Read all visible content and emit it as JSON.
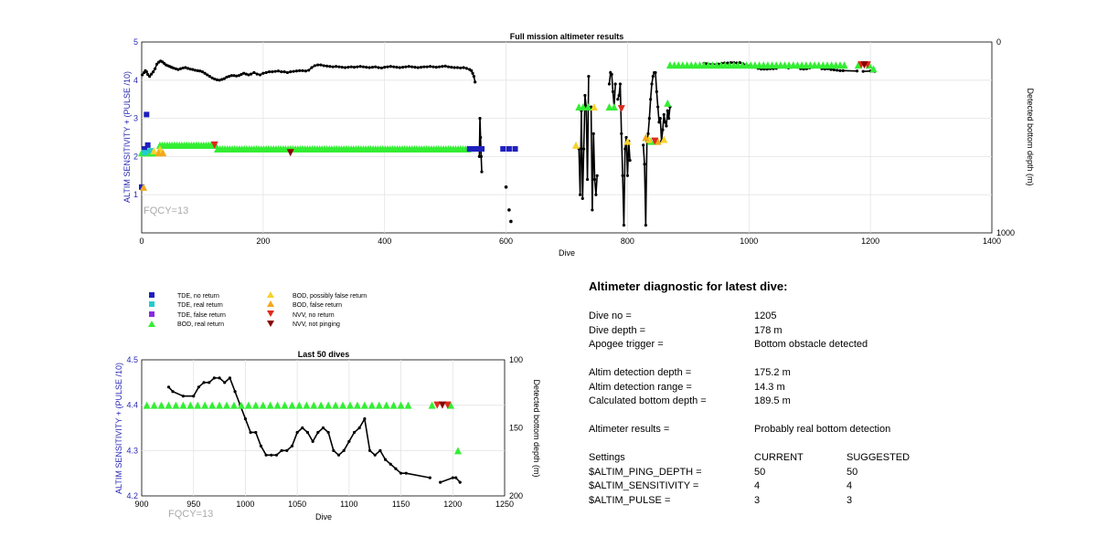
{
  "colors": {
    "blue": "#1f1fbf",
    "cyan": "#22cccc",
    "purple": "#8a2be2",
    "green": "#33ee33",
    "orange": "#f2a81d",
    "red": "#dd2a1b",
    "darkred": "#8b0000",
    "line": "#000000",
    "axis_label_blue": "#2a2ab5",
    "fqcy": "#aaaaaa"
  },
  "chart_data": [
    {
      "type": "scatter",
      "title": "Full mission altimeter results",
      "xlabel": "Dive",
      "ylabel": "ALTIM SENSITIVITY + (PULSE /10)",
      "y2label": "Detected bottom depth (m)",
      "xlim": [
        0,
        1400
      ],
      "ylim": [
        0,
        5
      ],
      "y2lim": [
        1000,
        0
      ],
      "xticks": [
        "0",
        "200",
        "400",
        "600",
        "800",
        "1000",
        "1200",
        "1400"
      ],
      "yticks": [
        "1",
        "2",
        "3",
        "4",
        "5"
      ],
      "y2ticks": [
        "0",
        "1000"
      ],
      "annotation": "FQCY=13",
      "grid": true,
      "depth_series": [
        {
          "x": [
            1,
            4,
            6,
            8,
            10,
            13,
            16,
            19,
            22,
            25,
            28,
            31,
            34,
            37,
            40,
            43,
            46,
            49,
            52,
            56,
            60,
            64,
            68,
            72,
            76,
            80,
            84,
            88,
            92,
            96,
            100,
            104,
            108,
            112,
            116,
            120,
            124,
            128,
            132,
            136,
            140,
            144,
            148,
            152,
            156,
            160,
            164,
            168,
            172,
            176,
            180,
            185,
            190,
            195,
            200,
            205,
            210,
            215,
            220,
            225,
            230,
            235,
            240,
            245,
            250,
            255,
            260,
            265,
            270,
            275,
            280,
            285,
            290,
            295,
            300,
            305,
            310,
            315,
            320,
            325,
            330,
            335,
            340,
            345,
            350,
            355,
            360,
            365,
            370,
            375,
            380,
            385,
            390,
            395,
            400,
            405,
            410,
            415,
            420,
            425,
            430,
            435,
            440,
            445,
            450,
            455,
            460,
            465,
            470,
            475,
            480,
            485,
            490,
            495,
            500,
            505,
            510,
            515,
            520,
            525,
            530,
            535,
            540,
            543,
            545,
            547,
            549
          ],
          "y": [
            4.14,
            4.2,
            4.25,
            4.22,
            4.15,
            4.1,
            4.16,
            4.22,
            4.3,
            4.42,
            4.47,
            4.5,
            4.48,
            4.44,
            4.4,
            4.38,
            4.36,
            4.34,
            4.32,
            4.3,
            4.28,
            4.3,
            4.32,
            4.33,
            4.31,
            4.29,
            4.28,
            4.26,
            4.25,
            4.24,
            4.22,
            4.18,
            4.14,
            4.1,
            4.06,
            4.03,
            4.01,
            4.0,
            4.02,
            4.04,
            4.08,
            4.1,
            4.12,
            4.12,
            4.11,
            4.12,
            4.15,
            4.18,
            4.16,
            4.14,
            4.16,
            4.2,
            4.16,
            4.14,
            4.18,
            4.2,
            4.22,
            4.22,
            4.23,
            4.24,
            4.22,
            4.22,
            4.2,
            4.22,
            4.23,
            4.24,
            4.25,
            4.25,
            4.24,
            4.26,
            4.33,
            4.38,
            4.4,
            4.4,
            4.38,
            4.37,
            4.36,
            4.35,
            4.36,
            4.35,
            4.34,
            4.33,
            4.34,
            4.35,
            4.34,
            4.35,
            4.36,
            4.35,
            4.34,
            4.33,
            4.34,
            4.35,
            4.33,
            4.32,
            4.34,
            4.35,
            4.36,
            4.35,
            4.34,
            4.33,
            4.34,
            4.35,
            4.36,
            4.35,
            4.34,
            4.33,
            4.34,
            4.35,
            4.35,
            4.36,
            4.35,
            4.34,
            4.35,
            4.36,
            4.37,
            4.35,
            4.34,
            4.33,
            4.33,
            4.32,
            4.33,
            4.31,
            4.28,
            4.25,
            4.18,
            4.1,
            3.95
          ]
        },
        {
          "x": [
            556,
            557,
            558,
            559,
            560
          ],
          "y": [
            2.0,
            3.0,
            2.5,
            2.0,
            1.6
          ]
        },
        {
          "x": [
            720,
            722,
            724,
            726,
            728,
            730,
            732,
            734,
            736
          ],
          "y": [
            2.2,
            1.0,
            3.2,
            0.9,
            2.2,
            3.6,
            3.3,
            1.4,
            4.1
          ]
        },
        {
          "x": [
            740,
            742,
            744,
            746,
            748,
            750
          ],
          "y": [
            3.3,
            0.6,
            2.6,
            1.4,
            1.0,
            1.5
          ]
        },
        {
          "x": [
            770,
            772,
            774,
            776,
            778,
            780
          ],
          "y": [
            3.9,
            4.2,
            4.15,
            3.7,
            3.3,
            3.9
          ]
        },
        {
          "x": [
            784,
            786,
            788,
            790,
            792,
            794,
            796,
            798,
            800,
            802,
            804
          ],
          "y": [
            3.5,
            3.6,
            3.9,
            2.6,
            1.5,
            0.2,
            2.2,
            2.5,
            1.5,
            2.4,
            1.9
          ]
        },
        {
          "x": [
            826,
            828,
            830,
            832,
            834,
            836,
            838,
            840,
            842,
            844,
            846,
            848,
            850,
            852,
            854,
            856,
            858,
            860,
            862,
            864,
            866,
            868,
            870
          ],
          "y": [
            2.3,
            1.8,
            0.2,
            2.4,
            2.6,
            3.0,
            3.5,
            3.9,
            4.1,
            4.2,
            4.2,
            3.7,
            3.3,
            2.9,
            3.0,
            2.4,
            2.7,
            3.1,
            2.9,
            2.8,
            3.2,
            3.0,
            3.3
          ]
        },
        {
          "x": [
            926,
            930,
            940,
            950,
            955,
            960,
            965,
            970,
            975,
            980,
            985,
            990,
            995,
            1000,
            1005,
            1010,
            1015,
            1020,
            1025,
            1030,
            1035,
            1040,
            1045,
            1050,
            1055,
            1060,
            1065,
            1070,
            1075,
            1080,
            1085,
            1090,
            1095,
            1100,
            1105,
            1110,
            1115,
            1120,
            1125,
            1130,
            1135,
            1140,
            1145,
            1150,
            1155,
            1178
          ],
          "y": [
            4.44,
            4.43,
            4.42,
            4.42,
            4.44,
            4.45,
            4.45,
            4.46,
            4.46,
            4.45,
            4.46,
            4.43,
            4.4,
            4.37,
            4.34,
            4.34,
            4.31,
            4.29,
            4.29,
            4.29,
            4.3,
            4.3,
            4.31,
            4.34,
            4.35,
            4.34,
            4.32,
            4.34,
            4.35,
            4.34,
            4.3,
            4.29,
            4.3,
            4.32,
            4.34,
            4.35,
            4.37,
            4.3,
            4.29,
            4.3,
            4.28,
            4.27,
            4.26,
            4.25,
            4.25,
            4.24
          ]
        },
        {
          "x": [
            1188,
            1200,
            1203,
            1207
          ],
          "y": [
            4.23,
            4.24,
            4.24,
            4.23
          ]
        }
      ],
      "depth_dots": [
        {
          "x": 600,
          "y": 1.2
        },
        {
          "x": 605,
          "y": 0.6
        },
        {
          "x": 608,
          "y": 0.3
        },
        {
          "x": 562,
          "y": 2.2
        }
      ],
      "markers": [
        {
          "kind": "tde_no_return",
          "x": [
            0,
            5,
            10,
            540,
            545,
            550,
            555,
            560,
            595,
            605,
            615
          ],
          "y": [
            1.2,
            2.2,
            2.3,
            2.2,
            2.2,
            2.2,
            2.2,
            2.2,
            2.2,
            2.2,
            2.2
          ]
        },
        {
          "kind": "tde_no_return",
          "x": [
            8
          ],
          "y": [
            3.1
          ]
        },
        {
          "kind": "tde_real_return",
          "x": [
            5,
            15
          ],
          "y": [
            2.1,
            2.15
          ]
        },
        {
          "kind": "bod_possibly_false",
          "x": [
            20,
            30,
            715,
            745,
            800,
            835,
            860
          ],
          "y": [
            2.15,
            2.2,
            2.3,
            3.3,
            2.4,
            2.45,
            2.45
          ]
        },
        {
          "kind": "bod_false_return",
          "x": [
            3,
            28,
            35,
            830,
            850
          ],
          "y": [
            1.2,
            2.1,
            2.1,
            2.5,
            2.4
          ]
        },
        {
          "kind": "nvv_no_return",
          "x": [
            120,
            790,
            845,
            1185,
            1195
          ],
          "y": [
            2.3,
            3.25,
            2.4,
            4.4,
            4.4
          ]
        },
        {
          "kind": "nvv_not_pinging",
          "x": [
            245,
            1190
          ],
          "y": [
            2.1,
            4.4
          ]
        }
      ],
      "bod_real_segments": [
        {
          "from": 0,
          "to": 20,
          "y": 2.1,
          "step": 5
        },
        {
          "from": 30,
          "to": 125,
          "y": 2.3,
          "step": 4
        },
        {
          "from": 125,
          "to": 540,
          "y": 2.2,
          "step": 4
        },
        {
          "from": 870,
          "to": 1160,
          "y": 4.4,
          "step": 7
        }
      ],
      "bod_real_extra": [
        {
          "x": 720,
          "y": 3.3
        },
        {
          "x": 727,
          "y": 3.3
        },
        {
          "x": 735,
          "y": 3.3
        },
        {
          "x": 770,
          "y": 3.3
        },
        {
          "x": 778,
          "y": 3.3
        },
        {
          "x": 838,
          "y": 2.4
        },
        {
          "x": 845,
          "y": 2.4
        },
        {
          "x": 866,
          "y": 3.4
        },
        {
          "x": 1180,
          "y": 4.4
        },
        {
          "x": 1198,
          "y": 4.4
        },
        {
          "x": 1205,
          "y": 4.3
        }
      ]
    },
    {
      "type": "scatter",
      "title": "Last 50 dives",
      "xlabel": "Dive",
      "ylabel": "ALTIM SENSITIVITY + (PULSE /10)",
      "y2label": "Detected bottom depth (m)",
      "xlim": [
        900,
        1250
      ],
      "ylim": [
        4.2,
        4.5
      ],
      "y2lim": [
        200,
        100
      ],
      "xticks": [
        "900",
        "950",
        "1000",
        "1050",
        "1100",
        "1150",
        "1200",
        "1250"
      ],
      "yticks": [
        "4.2",
        "4.3",
        "4.4",
        "4.5"
      ],
      "y2ticks": [
        "100",
        "150",
        "200"
      ],
      "annotation": "FQCY=13",
      "grid": true
    }
  ],
  "legend": {
    "tde_no_return": "TDE, no return",
    "tde_real_return": "TDE, real return",
    "tde_false_return": "TDE, false return",
    "bod_real_return": "BOD, real return",
    "bod_possibly_false": "BOD, possibly false return",
    "bod_false_return": "BOD, false return",
    "nvv_no_return": "NVV, no return",
    "nvv_not_pinging": "NVV, not pinging"
  },
  "diagnostic": {
    "heading": "Altimeter diagnostic for latest dive:",
    "dive_no_label": "Dive no =",
    "dive_no": "1205",
    "dive_depth_label": "Dive depth =",
    "dive_depth": "178 m",
    "apogee_label": "Apogee trigger =",
    "apogee": "Bottom obstacle detected",
    "det_depth_label": "Altim detection depth =",
    "det_depth": "175.2 m",
    "det_range_label": "Altim detection range =",
    "det_range": "14.3 m",
    "calc_bottom_label": "Calculated bottom depth =",
    "calc_bottom": "189.5 m",
    "results_label": "Altimeter results =",
    "results": "Probably real bottom detection",
    "settings_label": "Settings",
    "current_label": "CURRENT",
    "suggested_label": "SUGGESTED",
    "ping_depth_label": "$ALTIM_PING_DEPTH =",
    "ping_depth_cur": "50",
    "ping_depth_sug": "50",
    "sensitivity_label": "$ALTIM_SENSITIVITY =",
    "sensitivity_cur": "4",
    "sensitivity_sug": "4",
    "pulse_label": "$ALTIM_PULSE =",
    "pulse_cur": "3",
    "pulse_sug": "3"
  }
}
